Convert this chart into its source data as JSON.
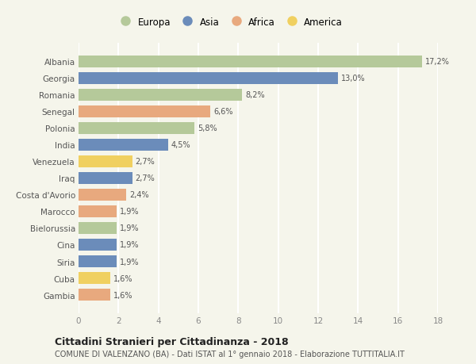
{
  "countries": [
    "Albania",
    "Georgia",
    "Romania",
    "Senegal",
    "Polonia",
    "India",
    "Venezuela",
    "Iraq",
    "Costa d'Avorio",
    "Marocco",
    "Bielorussia",
    "Cina",
    "Siria",
    "Cuba",
    "Gambia"
  ],
  "values": [
    17.2,
    13.0,
    8.2,
    6.6,
    5.8,
    4.5,
    2.7,
    2.7,
    2.4,
    1.9,
    1.9,
    1.9,
    1.9,
    1.6,
    1.6
  ],
  "labels": [
    "17,2%",
    "13,0%",
    "8,2%",
    "6,6%",
    "5,8%",
    "4,5%",
    "2,7%",
    "2,7%",
    "2,4%",
    "1,9%",
    "1,9%",
    "1,9%",
    "1,9%",
    "1,6%",
    "1,6%"
  ],
  "continent": [
    "Europa",
    "Asia",
    "Europa",
    "Africa",
    "Europa",
    "Asia",
    "America",
    "Asia",
    "Africa",
    "Africa",
    "Europa",
    "Asia",
    "Asia",
    "America",
    "Africa"
  ],
  "colors": {
    "Europa": "#b5c99a",
    "Asia": "#6b8cba",
    "Africa": "#e8a97e",
    "America": "#f0d060"
  },
  "xlim": [
    0,
    18
  ],
  "xticks": [
    0,
    2,
    4,
    6,
    8,
    10,
    12,
    14,
    16,
    18
  ],
  "title": "Cittadini Stranieri per Cittadinanza - 2018",
  "subtitle": "COMUNE DI VALENZANO (BA) - Dati ISTAT al 1° gennaio 2018 - Elaborazione TUTTITALIA.IT",
  "background_color": "#f5f5eb",
  "grid_color": "#ffffff",
  "bar_height": 0.72
}
